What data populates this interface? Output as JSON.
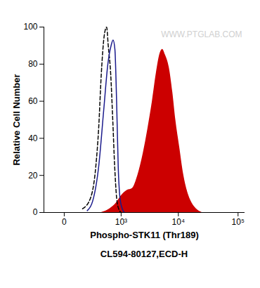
{
  "chart_data": {
    "type": "histogram_overlay",
    "x_label": "Phospho-STK11 (Thr189)",
    "y_label": "Relative Cell Number",
    "caption": "CL594-80127,ECD-H",
    "annotations": [
      {
        "text": "WWW.PTGLAB.COM"
      }
    ],
    "log": "x",
    "xlim": [
      -150,
      130000
    ],
    "xticks": [
      0,
      {
        "value": 1000,
        "label": "10³"
      },
      {
        "value": 10000,
        "label": "10⁴"
      },
      {
        "value": 100000,
        "label": "10⁵"
      }
    ],
    "ylim": [
      0,
      100
    ],
    "yticks": [
      0,
      20,
      40,
      60,
      80,
      100
    ],
    "grid": false,
    "series": [
      {
        "type": "line",
        "color": "#000000",
        "line_style": "dashed",
        "x": [
          130,
          223,
          300,
          348,
          400,
          460,
          519,
          560,
          627,
          690,
          752,
          820,
          898,
          1000
        ],
        "values": [
          2,
          8,
          25,
          45,
          75,
          95,
          100,
          90,
          75,
          50,
          25,
          8,
          2,
          0
        ]
      },
      {
        "type": "line",
        "color": "#1a1a8c",
        "line_style": "solid",
        "x": [
          180,
          250,
          350,
          450,
          550,
          640,
          700,
          760,
          820,
          880,
          950,
          1050,
          1150
        ],
        "values": [
          1,
          6,
          25,
          55,
          80,
          90,
          93,
          88,
          60,
          25,
          8,
          2,
          0
        ]
      },
      {
        "type": "area",
        "color": "#cc0000",
        "x": [
          400,
          600,
          800,
          1000,
          1300,
          1600,
          2000,
          2500,
          3000,
          3600,
          4200,
          4900,
          5400,
          6000,
          7000,
          8000,
          9000,
          10500,
          12000,
          14000,
          17000,
          20000,
          25000
        ],
        "values": [
          0,
          2,
          5,
          9,
          12,
          13,
          20,
          32,
          45,
          60,
          75,
          86,
          88,
          85,
          78,
          65,
          50,
          35,
          22,
          12,
          5,
          2,
          0
        ]
      }
    ]
  }
}
